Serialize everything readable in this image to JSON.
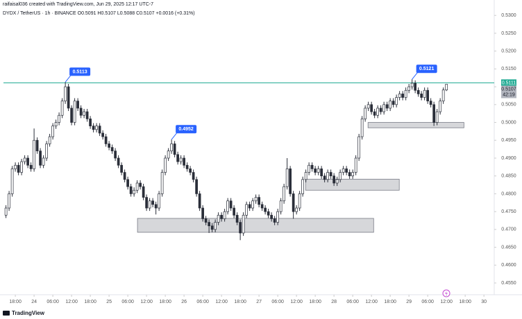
{
  "header": {
    "credit": "raifaisal036 created with TradingView.com, Jun 29, 2025 12:17 UTC-7",
    "symbol": "DYDX / TetherUS · 1h · BINANCE  O0.5091 H0.5107 L0.5088 C0.5107 +0.0016 (+0.31%)"
  },
  "footer": {
    "logo": "TradingView"
  },
  "chart_data": {
    "type": "candlestick",
    "up_color": "#ffffff",
    "down_color": "#2a2e39",
    "wick_color": "#2a2e39",
    "ylim": [
      0.4517,
      0.5316
    ],
    "xlim": [
      -0.8,
      156.3
    ],
    "yticks": [
      {
        "value": 0.53,
        "label": "0.5300"
      },
      {
        "value": 0.525,
        "label": "0.5250"
      },
      {
        "value": 0.52,
        "label": "0.5200"
      },
      {
        "value": 0.515,
        "label": "0.5150"
      },
      {
        "value": 0.51,
        "label": "0.5100"
      },
      {
        "value": 0.505,
        "label": "0.5050"
      },
      {
        "value": 0.5,
        "label": "0.5000"
      },
      {
        "value": 0.495,
        "label": "0.4950"
      },
      {
        "value": 0.49,
        "label": "0.4900"
      },
      {
        "value": 0.485,
        "label": "0.4850"
      },
      {
        "value": 0.48,
        "label": "0.4800"
      },
      {
        "value": 0.475,
        "label": "0.4750"
      },
      {
        "value": 0.47,
        "label": "0.4700"
      },
      {
        "value": 0.465,
        "label": "0.4650"
      },
      {
        "value": 0.46,
        "label": "0.4600"
      },
      {
        "value": 0.455,
        "label": "0.4550"
      }
    ],
    "xticks": [
      {
        "value": 3,
        "label": "18:00"
      },
      {
        "value": 9,
        "label": "24"
      },
      {
        "value": 15,
        "label": "06:00"
      },
      {
        "value": 21,
        "label": "12:00"
      },
      {
        "value": 27,
        "label": "18:00"
      },
      {
        "value": 33,
        "label": "25"
      },
      {
        "value": 39,
        "label": "06:00"
      },
      {
        "value": 45,
        "label": "12:00"
      },
      {
        "value": 51,
        "label": "18:00"
      },
      {
        "value": 57,
        "label": "26"
      },
      {
        "value": 63,
        "label": "06:00"
      },
      {
        "value": 69,
        "label": "12:00"
      },
      {
        "value": 75,
        "label": "18:00"
      },
      {
        "value": 81,
        "label": "27"
      },
      {
        "value": 87,
        "label": "06:00"
      },
      {
        "value": 93,
        "label": "12:00"
      },
      {
        "value": 99,
        "label": "18:00"
      },
      {
        "value": 105,
        "label": "28"
      },
      {
        "value": 111,
        "label": "06:00"
      },
      {
        "value": 117,
        "label": "12:00"
      },
      {
        "value": 123,
        "label": "18:00"
      },
      {
        "value": 129,
        "label": "29"
      },
      {
        "value": 135,
        "label": "06:00"
      },
      {
        "value": 141,
        "label": "12:00"
      },
      {
        "value": 147,
        "label": "18:00"
      },
      {
        "value": 153,
        "label": "30"
      }
    ],
    "hline": {
      "value": 0.5111,
      "label": "0.5111",
      "color": "#22ab94"
    },
    "last_price": {
      "value": 0.5107,
      "label": "0.5107",
      "countdown": "42:19"
    },
    "callouts": [
      {
        "index": 19,
        "value": 0.5113,
        "label": "0.5113"
      },
      {
        "index": 53,
        "value": 0.4952,
        "label": "0.4952"
      },
      {
        "index": 130,
        "value": 0.5121,
        "label": "0.5121"
      }
    ],
    "zones": [
      {
        "from": 42.1,
        "to": 117.7,
        "top": 0.4731,
        "bottom": 0.4692
      },
      {
        "from": 95.9,
        "to": 125.9,
        "top": 0.4841,
        "bottom": 0.481
      },
      {
        "from": 115.9,
        "to": 146.6,
        "top": 0.5,
        "bottom": 0.4985
      }
    ],
    "candles": [
      [
        0.474,
        0.4768,
        0.4732,
        0.476
      ],
      [
        0.476,
        0.4808,
        0.4752,
        0.48
      ],
      [
        0.48,
        0.4878,
        0.4792,
        0.487
      ],
      [
        0.487,
        0.4888,
        0.4862,
        0.488
      ],
      [
        0.488,
        0.4888,
        0.4852,
        0.486
      ],
      [
        0.486,
        0.4898,
        0.4852,
        0.489
      ],
      [
        0.489,
        0.4908,
        0.4882,
        0.49
      ],
      [
        0.49,
        0.4908,
        0.4872,
        0.488
      ],
      [
        0.488,
        0.4888,
        0.4862,
        0.487
      ],
      [
        0.487,
        0.4983,
        0.4862,
        0.495
      ],
      [
        0.495,
        0.4958,
        0.4912,
        0.492
      ],
      [
        0.492,
        0.4928,
        0.4872,
        0.488
      ],
      [
        0.488,
        0.4908,
        0.4872,
        0.49
      ],
      [
        0.49,
        0.4948,
        0.4892,
        0.494
      ],
      [
        0.494,
        0.4968,
        0.4932,
        0.496
      ],
      [
        0.496,
        0.4998,
        0.4952,
        0.499
      ],
      [
        0.499,
        0.5008,
        0.4982,
        0.5
      ],
      [
        0.5,
        0.5028,
        0.4992,
        0.502
      ],
      [
        0.502,
        0.5068,
        0.5012,
        0.506
      ],
      [
        0.506,
        0.5113,
        0.5052,
        0.51
      ],
      [
        0.51,
        0.5108,
        0.5032,
        0.504
      ],
      [
        0.504,
        0.5048,
        0.4992,
        0.5
      ],
      [
        0.5,
        0.5068,
        0.4992,
        0.506
      ],
      [
        0.506,
        0.5068,
        0.5032,
        0.504
      ],
      [
        0.504,
        0.5048,
        0.5012,
        0.502
      ],
      [
        0.502,
        0.5038,
        0.5012,
        0.503
      ],
      [
        0.503,
        0.5038,
        0.5002,
        0.501
      ],
      [
        0.501,
        0.5018,
        0.4982,
        0.499
      ],
      [
        0.499,
        0.4998,
        0.4972,
        0.498
      ],
      [
        0.498,
        0.4998,
        0.4972,
        0.499
      ],
      [
        0.499,
        0.4998,
        0.4962,
        0.497
      ],
      [
        0.497,
        0.4978,
        0.4952,
        0.496
      ],
      [
        0.496,
        0.4968,
        0.4932,
        0.494
      ],
      [
        0.494,
        0.4948,
        0.4922,
        0.493
      ],
      [
        0.493,
        0.4938,
        0.4912,
        0.492
      ],
      [
        0.492,
        0.4928,
        0.4892,
        0.49
      ],
      [
        0.49,
        0.4908,
        0.4872,
        0.488
      ],
      [
        0.488,
        0.4888,
        0.4852,
        0.486
      ],
      [
        0.486,
        0.4868,
        0.4832,
        0.484
      ],
      [
        0.484,
        0.4848,
        0.4812,
        0.482
      ],
      [
        0.482,
        0.4828,
        0.4792,
        0.48
      ],
      [
        0.48,
        0.4818,
        0.4792,
        0.481
      ],
      [
        0.481,
        0.4838,
        0.4802,
        0.483
      ],
      [
        0.483,
        0.4838,
        0.4812,
        0.482
      ],
      [
        0.482,
        0.4828,
        0.4782,
        0.479
      ],
      [
        0.479,
        0.4798,
        0.4752,
        0.476
      ],
      [
        0.476,
        0.4788,
        0.4752,
        0.478
      ],
      [
        0.478,
        0.4788,
        0.4762,
        0.477
      ],
      [
        0.477,
        0.4778,
        0.4742,
        0.476
      ],
      [
        0.476,
        0.4808,
        0.4752,
        0.48
      ],
      [
        0.48,
        0.4868,
        0.4792,
        0.486
      ],
      [
        0.486,
        0.4908,
        0.4852,
        0.49
      ],
      [
        0.49,
        0.4928,
        0.4892,
        0.492
      ],
      [
        0.492,
        0.4952,
        0.4912,
        0.494
      ],
      [
        0.494,
        0.4948,
        0.4902,
        0.491
      ],
      [
        0.491,
        0.4918,
        0.4882,
        0.489
      ],
      [
        0.489,
        0.4908,
        0.4882,
        0.49
      ],
      [
        0.49,
        0.4908,
        0.4872,
        0.488
      ],
      [
        0.488,
        0.4888,
        0.4862,
        0.487
      ],
      [
        0.487,
        0.4878,
        0.4852,
        0.486
      ],
      [
        0.486,
        0.4868,
        0.4832,
        0.484
      ],
      [
        0.484,
        0.4848,
        0.4792,
        0.48
      ],
      [
        0.48,
        0.4808,
        0.4752,
        0.476
      ],
      [
        0.476,
        0.4768,
        0.4722,
        0.473
      ],
      [
        0.473,
        0.4738,
        0.4712,
        0.472
      ],
      [
        0.472,
        0.4728,
        0.469,
        0.471
      ],
      [
        0.471,
        0.4718,
        0.4692,
        0.47
      ],
      [
        0.47,
        0.4728,
        0.4692,
        0.472
      ],
      [
        0.472,
        0.4748,
        0.4712,
        0.474
      ],
      [
        0.474,
        0.4748,
        0.4722,
        0.473
      ],
      [
        0.473,
        0.4758,
        0.4722,
        0.475
      ],
      [
        0.475,
        0.4788,
        0.4742,
        0.478
      ],
      [
        0.478,
        0.4788,
        0.4752,
        0.476
      ],
      [
        0.476,
        0.4768,
        0.4732,
        0.474
      ],
      [
        0.474,
        0.4748,
        0.4712,
        0.472
      ],
      [
        0.472,
        0.4728,
        0.467,
        0.469
      ],
      [
        0.469,
        0.4748,
        0.4682,
        0.474
      ],
      [
        0.474,
        0.4778,
        0.4732,
        0.477
      ],
      [
        0.477,
        0.4778,
        0.4752,
        0.476
      ],
      [
        0.476,
        0.4788,
        0.4752,
        0.478
      ],
      [
        0.478,
        0.4798,
        0.4772,
        0.479
      ],
      [
        0.479,
        0.4798,
        0.4762,
        0.477
      ],
      [
        0.477,
        0.4778,
        0.4752,
        0.476
      ],
      [
        0.476,
        0.4768,
        0.4742,
        0.475
      ],
      [
        0.475,
        0.4758,
        0.4732,
        0.474
      ],
      [
        0.474,
        0.4748,
        0.4722,
        0.473
      ],
      [
        0.473,
        0.4738,
        0.4712,
        0.472
      ],
      [
        0.472,
        0.4758,
        0.4712,
        0.475
      ],
      [
        0.475,
        0.4788,
        0.4742,
        0.478
      ],
      [
        0.478,
        0.4828,
        0.4772,
        0.482
      ],
      [
        0.482,
        0.49,
        0.4812,
        0.487
      ],
      [
        0.487,
        0.4878,
        0.4792,
        0.48
      ],
      [
        0.48,
        0.4808,
        0.473,
        0.475
      ],
      [
        0.475,
        0.4768,
        0.4742,
        0.476
      ],
      [
        0.476,
        0.4808,
        0.4752,
        0.48
      ],
      [
        0.48,
        0.4848,
        0.4792,
        0.484
      ],
      [
        0.484,
        0.4868,
        0.4832,
        0.486
      ],
      [
        0.486,
        0.4888,
        0.4852,
        0.488
      ],
      [
        0.488,
        0.4888,
        0.4862,
        0.487
      ],
      [
        0.487,
        0.4878,
        0.4852,
        0.486
      ],
      [
        0.486,
        0.4878,
        0.4852,
        0.487
      ],
      [
        0.487,
        0.4878,
        0.4842,
        0.485
      ],
      [
        0.485,
        0.4858,
        0.4832,
        0.484
      ],
      [
        0.484,
        0.4868,
        0.4832,
        0.486
      ],
      [
        0.486,
        0.4868,
        0.4842,
        0.485
      ],
      [
        0.485,
        0.4858,
        0.4822,
        0.483
      ],
      [
        0.483,
        0.4848,
        0.4822,
        0.484
      ],
      [
        0.484,
        0.4868,
        0.4832,
        0.486
      ],
      [
        0.486,
        0.4878,
        0.4852,
        0.487
      ],
      [
        0.487,
        0.4878,
        0.4852,
        0.486
      ],
      [
        0.486,
        0.4868,
        0.4842,
        0.485
      ],
      [
        0.485,
        0.4868,
        0.4842,
        0.486
      ],
      [
        0.486,
        0.4908,
        0.4852,
        0.49
      ],
      [
        0.49,
        0.4968,
        0.4892,
        0.496
      ],
      [
        0.496,
        0.5018,
        0.4952,
        0.501
      ],
      [
        0.501,
        0.5048,
        0.5002,
        0.504
      ],
      [
        0.504,
        0.5058,
        0.5032,
        0.505
      ],
      [
        0.505,
        0.5058,
        0.5022,
        0.503
      ],
      [
        0.503,
        0.5038,
        0.5012,
        0.502
      ],
      [
        0.502,
        0.5048,
        0.5012,
        0.504
      ],
      [
        0.504,
        0.5048,
        0.5022,
        0.503
      ],
      [
        0.503,
        0.5058,
        0.5022,
        0.505
      ],
      [
        0.505,
        0.5058,
        0.5032,
        0.504
      ],
      [
        0.504,
        0.5068,
        0.5032,
        0.506
      ],
      [
        0.506,
        0.5068,
        0.5042,
        0.505
      ],
      [
        0.505,
        0.5078,
        0.5042,
        0.507
      ],
      [
        0.507,
        0.5088,
        0.5062,
        0.508
      ],
      [
        0.508,
        0.5088,
        0.5062,
        0.507
      ],
      [
        0.507,
        0.5098,
        0.5062,
        0.509
      ],
      [
        0.509,
        0.5108,
        0.5082,
        0.51
      ],
      [
        0.51,
        0.5121,
        0.5092,
        0.511
      ],
      [
        0.511,
        0.5118,
        0.5082,
        0.509
      ],
      [
        0.509,
        0.5098,
        0.5072,
        0.508
      ],
      [
        0.508,
        0.5088,
        0.5062,
        0.507
      ],
      [
        0.507,
        0.5098,
        0.5062,
        0.509
      ],
      [
        0.509,
        0.5098,
        0.5052,
        0.506
      ],
      [
        0.506,
        0.5068,
        0.5042,
        0.505
      ],
      [
        0.505,
        0.5058,
        0.499,
        0.5
      ],
      [
        0.5,
        0.5038,
        0.4992,
        0.503
      ],
      [
        0.503,
        0.5068,
        0.5022,
        0.506
      ],
      [
        0.506,
        0.5098,
        0.5052,
        0.5091
      ],
      [
        0.5091,
        0.5107,
        0.5088,
        0.5107
      ]
    ]
  }
}
